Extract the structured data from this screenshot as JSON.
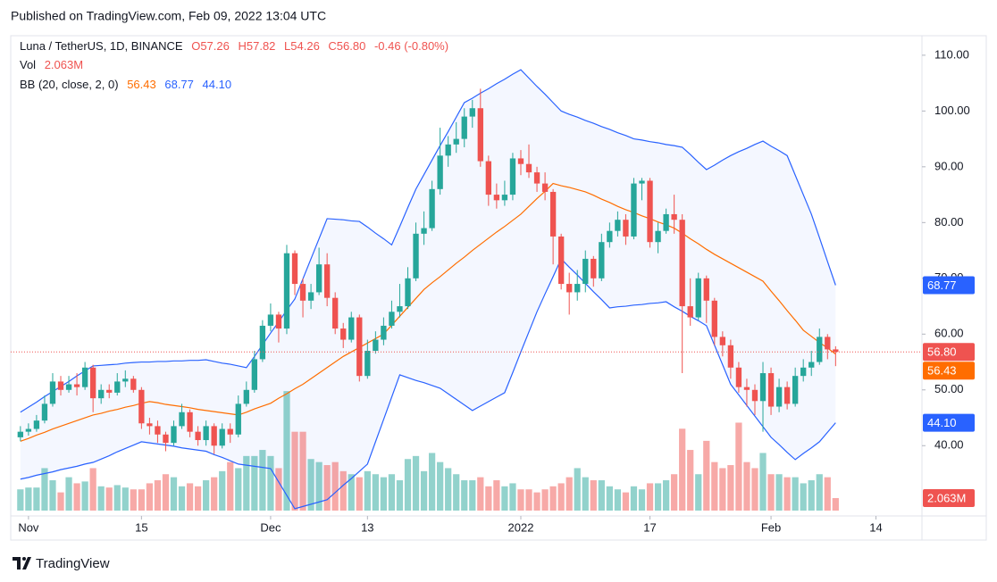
{
  "header": "Published on TradingView.com, Feb 09, 2022 13:04 UTC",
  "footer": "TradingView",
  "chart_data": {
    "type": "candlestick",
    "symbol": "Luna / TetherUS, 1D, BINANCE",
    "ohlc_legend": [
      "O57.26",
      "H57.82",
      "L54.26",
      "C56.80",
      "-0.46 (-0.80%)"
    ],
    "volume_name": "Vol",
    "bb_name": "BB (20, close, 2, 0)",
    "last_labels": {
      "close": "56.80",
      "bb_basis": "56.43",
      "bb_upper": "68.77",
      "bb_lower": "44.10",
      "volume": "2.063M"
    },
    "up_color": "#26a69a",
    "down_color": "#ef5350",
    "bb_basis_color": "#ff6d00",
    "bb_band_color": "#2962ff",
    "x": [
      0,
      1,
      2,
      3,
      4,
      5,
      6,
      7,
      8,
      9,
      10,
      11,
      12,
      13,
      14,
      15,
      16,
      17,
      18,
      19,
      20,
      21,
      22,
      23,
      24,
      25,
      26,
      27,
      28,
      29,
      30,
      31,
      32,
      33,
      34,
      35,
      36,
      37,
      38,
      39,
      40,
      41,
      42,
      43,
      44,
      45,
      46,
      47,
      48,
      49,
      50,
      51,
      52,
      53,
      54,
      55,
      56,
      57,
      58,
      59,
      60,
      61,
      62,
      63,
      64,
      65,
      66,
      67,
      68,
      69,
      70,
      71,
      72,
      73,
      74,
      75,
      76,
      77,
      78,
      79,
      80,
      81,
      82,
      83,
      84,
      85,
      86,
      87,
      88,
      89,
      90,
      91,
      92,
      93,
      94,
      95,
      96,
      97,
      98,
      99,
      100,
      101
    ],
    "open": [
      41.5,
      42.5,
      43,
      44.5,
      47.5,
      51.5,
      50,
      51,
      50.5,
      54,
      48.5,
      50,
      49.5,
      51.5,
      52,
      50,
      44,
      43.5,
      42,
      40.5,
      43.5,
      46,
      42.5,
      41,
      43.5,
      40,
      43,
      42,
      47.5,
      50,
      55.5,
      61.5,
      63.5,
      61,
      74.5,
      69,
      66,
      67.5,
      72.5,
      66.5,
      61,
      59,
      63,
      52.5,
      57,
      59,
      61.5,
      64,
      65,
      70,
      78,
      79,
      86,
      92,
      94,
      95,
      99,
      100.5,
      91,
      85,
      84,
      85,
      91.5,
      90.5,
      89,
      87,
      85.5,
      77.5,
      69,
      67.5,
      69,
      73.5,
      70,
      76.5,
      78.5,
      80.5,
      77.5,
      87,
      87.5,
      76.5,
      78.5,
      81.5,
      80.5,
      65,
      63,
      70,
      66,
      59.5,
      58,
      54,
      50.5,
      50,
      48,
      53,
      47,
      50.5,
      47.5,
      52.5,
      54,
      55,
      59.5,
      57.26
    ],
    "high": [
      43.5,
      44,
      45.5,
      49,
      53,
      52.5,
      52.5,
      53,
      55,
      54.5,
      51,
      51,
      53,
      53.5,
      52.5,
      50.5,
      45,
      44.5,
      42.5,
      44.5,
      47.5,
      46.5,
      43.5,
      44.5,
      44,
      44,
      44,
      49,
      51.5,
      57,
      62.5,
      65.5,
      64,
      76,
      75,
      70,
      69,
      75.5,
      74.5,
      67.5,
      62,
      64,
      63.5,
      59,
      60.5,
      63,
      66,
      69,
      72,
      80,
      82,
      87.5,
      97,
      95.5,
      98,
      100.5,
      102,
      104,
      92,
      87,
      87.5,
      92.5,
      93,
      94,
      90,
      89,
      86,
      78,
      71,
      71.5,
      75,
      74,
      78,
      80,
      82,
      81.5,
      88,
      88,
      88,
      80,
      82.5,
      85,
      81.5,
      70,
      71,
      70.5,
      66.5,
      60.5,
      59,
      55,
      52,
      51,
      55,
      54,
      52,
      51.5,
      54,
      55.5,
      57,
      61,
      60,
      57.82
    ],
    "low": [
      40.8,
      41.8,
      42.5,
      44,
      47,
      49,
      49.5,
      49,
      50,
      46,
      47.5,
      48.5,
      49,
      50.5,
      49.5,
      43,
      42,
      40.5,
      39,
      40,
      43,
      41.5,
      40,
      40,
      38.5,
      39.5,
      40.5,
      41.5,
      47,
      49.5,
      55,
      60.5,
      58.5,
      60,
      67,
      63,
      64.5,
      67,
      65,
      60,
      57.5,
      58.5,
      51.5,
      52,
      56.5,
      58,
      61,
      63,
      64.5,
      69.5,
      76,
      78.5,
      85,
      90,
      92.5,
      93.5,
      97,
      90,
      83,
      82.5,
      83,
      84,
      88.5,
      88,
      85.5,
      84,
      72.5,
      68,
      63.5,
      66,
      67.5,
      68.5,
      69.5,
      75.5,
      77.5,
      76,
      77,
      84,
      75.5,
      74.5,
      78,
      78,
      53,
      61.5,
      62.5,
      62,
      58,
      56,
      52,
      49.5,
      47,
      45.5,
      42.5,
      45.5,
      46,
      46.5,
      47,
      51.5,
      52.5,
      54.5,
      55.5,
      54.26
    ],
    "close": [
      42.5,
      43,
      44.5,
      47.5,
      51.5,
      50,
      51,
      50.5,
      54,
      48.5,
      50,
      49.5,
      51.5,
      52,
      50,
      44,
      43.5,
      42,
      40.5,
      43.5,
      46,
      42.5,
      41,
      43.5,
      40,
      43,
      42,
      47.5,
      50,
      55.5,
      61.5,
      63.5,
      61,
      74.5,
      69,
      66,
      67.5,
      72.5,
      66.5,
      61,
      59,
      63,
      52.5,
      57,
      59,
      61.5,
      64,
      65,
      70,
      78,
      79,
      86,
      92,
      94,
      95,
      99,
      100.5,
      91,
      85,
      84,
      85,
      91.5,
      90.5,
      89,
      87,
      85.5,
      77.5,
      69,
      67.5,
      69,
      73.5,
      70,
      76.5,
      78.5,
      80.5,
      77.5,
      87,
      87.5,
      76.5,
      78.5,
      81.5,
      80.5,
      65,
      63,
      70,
      66,
      59.5,
      58,
      54,
      50.5,
      50,
      48,
      53,
      47,
      50.5,
      47.5,
      52.5,
      54,
      55,
      59.5,
      57.26,
      56.8
    ],
    "volume": [
      3.5,
      3.8,
      3.8,
      7,
      5,
      3,
      5.5,
      4.5,
      4.8,
      7,
      4,
      3.8,
      4.2,
      3.8,
      3.5,
      3.5,
      4.5,
      5,
      6,
      5.5,
      4,
      4.5,
      4,
      5,
      5.5,
      6.5,
      8,
      7,
      9,
      9,
      10,
      9,
      7,
      19.7,
      13,
      13,
      8.5,
      8,
      7.5,
      8,
      6.5,
      6,
      5.5,
      6.5,
      6,
      5.5,
      6,
      5,
      8.5,
      9,
      6.5,
      9.5,
      8,
      7,
      6,
      5,
      5,
      5.5,
      4,
      5,
      4,
      4.5,
      3.5,
      3.5,
      3,
      3.5,
      4,
      4.5,
      5.5,
      7,
      5.5,
      5,
      5,
      4,
      3.5,
      3,
      4,
      3.5,
      4.5,
      4.5,
      5,
      6,
      13.5,
      10,
      6,
      11.5,
      8,
      7,
      7.5,
      14.5,
      8,
      7,
      9.5,
      6,
      6,
      5.5,
      5.5,
      4.5,
      5,
      6,
      5.5,
      2.063
    ],
    "bb_basis": [
      40.8,
      41.3,
      41.9,
      42.4,
      43,
      43.5,
      44,
      44.5,
      45,
      45.5,
      45.8,
      46.2,
      46.5,
      46.9,
      47.2,
      47.6,
      47.9,
      47.7,
      47.4,
      47.2,
      47,
      46.8,
      46.5,
      46.3,
      46.1,
      45.9,
      45.7,
      45.5,
      46,
      46.6,
      47.1,
      47.6,
      48.5,
      49.3,
      50.2,
      51,
      52,
      53,
      54,
      55,
      56,
      56.8,
      57.6,
      58.4,
      59.2,
      60,
      61.6,
      63.2,
      64.8,
      66.4,
      68,
      69.2,
      70.3,
      71.5,
      72.7,
      73.8,
      75,
      76.1,
      77.2,
      78.3,
      79.3,
      80.4,
      81.5,
      82.9,
      84.3,
      85.6,
      87,
      86.6,
      86.3,
      85.9,
      85.5,
      84.9,
      84.2,
      83.6,
      82.9,
      82.3,
      81.8,
      81.2,
      80.7,
      80.1,
      79.6,
      79,
      78.1,
      77.1,
      76.2,
      75.2,
      74.3,
      73.5,
      72.7,
      71.9,
      71.1,
      70.3,
      69.5,
      67.7,
      66,
      64.2,
      62.5,
      60.7,
      59.6,
      58.5,
      57.5,
      56.43
    ],
    "bb_upper": [
      46,
      46.9,
      47.8,
      48.8,
      49.7,
      50.6,
      51.5,
      52.5,
      53.4,
      54.3,
      54.4,
      54.5,
      54.6,
      54.8,
      54.9,
      55,
      55,
      55.1,
      55.1,
      55.2,
      55.2,
      55.3,
      55.3,
      55.4,
      55.1,
      54.8,
      54.6,
      54.3,
      54,
      56,
      58.1,
      60.2,
      62.2,
      64.3,
      66.3,
      69.9,
      73.5,
      77.1,
      80.7,
      80.6,
      80.5,
      80.3,
      80.2,
      79.2,
      78.1,
      77.1,
      76,
      79.3,
      82.7,
      86,
      88.6,
      91.2,
      93.8,
      96.3,
      98.9,
      101.5,
      102.3,
      103.2,
      104,
      104.9,
      105.7,
      106.6,
      107.4,
      105.9,
      104.4,
      103,
      101.5,
      100,
      99.4,
      98.9,
      98.3,
      97.8,
      97.2,
      96.7,
      96.1,
      95.6,
      95,
      94.8,
      94.5,
      94.3,
      94,
      93.8,
      93.5,
      92.2,
      90.8,
      89.5,
      90.3,
      91.2,
      92,
      92.7,
      93.3,
      94,
      94.6,
      93.7,
      92.9,
      92,
      88.5,
      85,
      81.5,
      77.3,
      73,
      68.77
    ],
    "bb_lower": [
      34,
      34.3,
      34.7,
      35,
      35.3,
      35.7,
      36,
      36.3,
      36.7,
      37,
      37.6,
      38.2,
      38.9,
      39.5,
      40.1,
      40.7,
      40.5,
      40.3,
      40.1,
      39.9,
      39.6,
      39.4,
      39.2,
      39,
      38.4,
      37.9,
      37.3,
      36.7,
      36.5,
      36.3,
      36.1,
      35.9,
      33.5,
      31.1,
      28.7,
      29.1,
      29.5,
      29.9,
      30.3,
      31.6,
      32.9,
      34.1,
      35.4,
      36.7,
      40.7,
      44.7,
      48.7,
      52.7,
      52.2,
      51.7,
      51.3,
      50.8,
      50.3,
      49.3,
      48.3,
      47.3,
      46.3,
      47.1,
      47.9,
      48.7,
      49.5,
      53.1,
      56.8,
      60.4,
      64,
      67.2,
      70.3,
      73.5,
      72,
      70.6,
      69.1,
      67.6,
      66.2,
      64.7,
      64.9,
      65,
      65.2,
      65.3,
      65.5,
      65.6,
      65.8,
      64.9,
      64.1,
      63.2,
      62.4,
      61.5,
      58,
      54.5,
      51,
      49.1,
      47.2,
      45.3,
      43.4,
      41.5,
      40.2,
      38.8,
      37.5,
      38.6,
      39.6,
      40.7,
      42.4,
      44.1
    ],
    "xlim": [
      -1.2,
      111.7
    ],
    "xticks": [
      {
        "value": 1,
        "label": "Nov"
      },
      15,
      {
        "value": 31,
        "label": "Dec"
      },
      {
        "value": 43,
        "label": "13"
      },
      {
        "value": 62,
        "label": "2022"
      },
      {
        "value": 78,
        "label": "17"
      },
      {
        "value": 93,
        "label": "Feb"
      },
      {
        "value": 106,
        "label": "14"
      }
    ],
    "ylim": [
      27.4,
      113.5
    ],
    "yticks": [
      {
        "value": 40,
        "label": "40.00"
      },
      {
        "value": 50,
        "label": "50.00"
      },
      {
        "value": 60,
        "label": "60.00"
      },
      {
        "value": 70,
        "label": "70.00"
      },
      {
        "value": 80,
        "label": "80.00"
      },
      {
        "value": 90,
        "label": "90.00"
      },
      {
        "value": 100,
        "label": "100.00"
      },
      {
        "value": 110,
        "label": "110.00"
      }
    ],
    "volume_lim": [
      0,
      28.7
    ]
  }
}
